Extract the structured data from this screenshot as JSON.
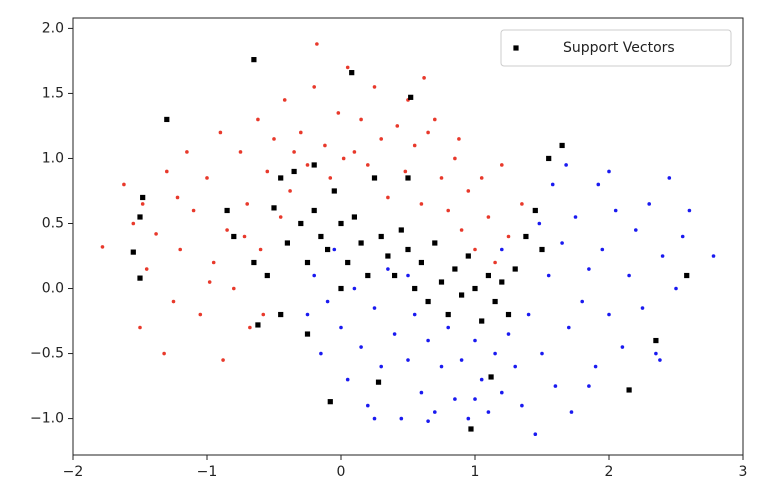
{
  "chart_data": {
    "type": "scatter",
    "xlim": [
      -2.0,
      3.0
    ],
    "ylim": [
      -1.28,
      2.08
    ],
    "xticks": [
      {
        "value": -2,
        "label": "−2"
      },
      {
        "value": -1,
        "label": "−1"
      },
      0,
      1,
      2,
      3
    ],
    "yticks": [
      {
        "value": 2.0,
        "label": "2.0"
      },
      {
        "value": 1.5,
        "label": "1.5"
      },
      {
        "value": 1.0,
        "label": "1.0"
      },
      {
        "value": 0.5,
        "label": "0.5"
      },
      {
        "value": 0.0,
        "label": "0.0"
      },
      {
        "value": -0.5,
        "label": "−0.5"
      },
      {
        "value": -1.0,
        "label": "−1.0"
      }
    ],
    "grid": false,
    "legend": "upper right",
    "series": [
      {
        "color": "#e8392b",
        "marker": "circle",
        "x": [
          -1.78,
          -1.62,
          -1.55,
          -1.5,
          -1.45,
          -1.38,
          -1.3,
          -1.25,
          -1.2,
          -1.15,
          -1.1,
          -1.05,
          -1.0,
          -0.95,
          -0.9,
          -0.88,
          -0.85,
          -0.8,
          -0.75,
          -0.7,
          -0.68,
          -0.62,
          -0.6,
          -0.55,
          -0.5,
          -0.45,
          -0.42,
          -0.38,
          -0.3,
          -0.25,
          -0.2,
          -0.18,
          -0.12,
          -0.08,
          -0.02,
          0.05,
          0.1,
          0.15,
          0.2,
          0.25,
          0.3,
          0.35,
          0.42,
          0.48,
          0.5,
          0.55,
          0.6,
          0.65,
          0.7,
          0.75,
          0.8,
          0.85,
          0.9,
          0.95,
          1.0,
          1.05,
          1.1,
          1.15,
          1.2,
          1.25,
          1.3,
          1.35,
          -1.48,
          -1.32,
          -0.98,
          -0.72,
          -1.22,
          -0.58,
          0.02,
          0.62,
          -0.35,
          0.88
        ],
        "values": [
          0.32,
          0.8,
          0.5,
          -0.3,
          0.15,
          0.42,
          0.9,
          -0.1,
          0.3,
          1.05,
          0.6,
          -0.2,
          0.85,
          0.2,
          1.2,
          -0.55,
          0.45,
          0.0,
          1.05,
          0.65,
          -0.3,
          1.3,
          0.3,
          0.9,
          1.15,
          0.55,
          1.45,
          0.75,
          1.2,
          0.95,
          1.55,
          1.88,
          1.1,
          0.85,
          1.35,
          1.7,
          1.05,
          1.3,
          0.95,
          1.55,
          1.15,
          0.7,
          1.25,
          0.9,
          1.45,
          1.1,
          0.65,
          1.2,
          1.3,
          0.85,
          0.6,
          1.0,
          0.45,
          0.75,
          0.3,
          0.85,
          0.55,
          0.2,
          0.95,
          0.4,
          0.15,
          0.65,
          0.65,
          -0.5,
          0.05,
          0.4,
          0.7,
          -0.2,
          1.0,
          1.62,
          1.05,
          1.15
        ]
      },
      {
        "color": "#1a1af0",
        "marker": "circle",
        "x": [
          -0.25,
          -0.2,
          -0.15,
          -0.1,
          -0.05,
          0.0,
          0.05,
          0.1,
          0.15,
          0.2,
          0.25,
          0.3,
          0.35,
          0.4,
          0.45,
          0.5,
          0.55,
          0.6,
          0.65,
          0.7,
          0.75,
          0.8,
          0.85,
          0.9,
          0.95,
          1.0,
          1.05,
          1.1,
          1.15,
          1.2,
          1.25,
          1.3,
          1.35,
          1.4,
          1.45,
          1.5,
          1.55,
          1.6,
          1.65,
          1.7,
          1.72,
          1.75,
          1.8,
          1.85,
          1.9,
          1.92,
          1.95,
          2.0,
          2.05,
          2.1,
          2.15,
          2.2,
          2.25,
          2.3,
          2.35,
          2.4,
          2.45,
          2.5,
          2.55,
          2.78,
          1.68,
          1.58,
          2.38,
          0.25,
          1.0,
          1.85,
          0.5,
          1.2,
          2.6,
          2.0,
          0.65,
          1.48
        ],
        "values": [
          -0.2,
          0.1,
          -0.5,
          -0.1,
          0.3,
          -0.3,
          -0.7,
          0.0,
          -0.45,
          -0.9,
          -0.15,
          -0.6,
          0.15,
          -0.35,
          -1.0,
          -0.55,
          -0.2,
          -0.8,
          -0.4,
          -0.95,
          -0.6,
          -0.3,
          -0.85,
          -0.55,
          -1.0,
          -0.4,
          -0.7,
          -0.95,
          -0.5,
          -0.8,
          -0.35,
          -0.6,
          -0.9,
          -0.2,
          -1.12,
          -0.5,
          0.1,
          -0.75,
          0.35,
          -0.3,
          -0.95,
          0.55,
          -0.1,
          0.15,
          -0.6,
          0.8,
          0.3,
          -0.2,
          0.6,
          -0.45,
          0.1,
          0.45,
          -0.15,
          0.65,
          -0.5,
          0.25,
          0.85,
          0.0,
          0.4,
          0.25,
          0.95,
          0.8,
          -0.55,
          -1.0,
          -0.85,
          -0.75,
          0.1,
          0.3,
          0.6,
          0.9,
          -1.02,
          0.5
        ]
      },
      {
        "name": "Support Vectors",
        "color": "#000000",
        "marker": "square",
        "x": [
          -1.3,
          -1.48,
          -1.5,
          -1.55,
          -1.5,
          -0.65,
          0.08,
          0.52,
          -0.85,
          -0.8,
          -0.65,
          -0.55,
          -0.62,
          -0.45,
          -0.5,
          -0.45,
          -0.4,
          -0.35,
          -0.3,
          -0.25,
          -0.2,
          -0.15,
          -0.1,
          -0.05,
          0.0,
          0.05,
          0.1,
          0.15,
          0.2,
          0.25,
          0.3,
          0.35,
          0.4,
          0.45,
          0.5,
          0.55,
          0.6,
          0.65,
          0.7,
          0.75,
          0.8,
          0.85,
          0.9,
          0.95,
          1.0,
          1.05,
          1.1,
          1.15,
          1.2,
          1.25,
          1.3,
          1.38,
          1.45,
          1.5,
          1.65,
          1.55,
          2.15,
          2.35,
          2.58,
          -0.08,
          0.97,
          1.12,
          0.28,
          -0.25,
          0.0,
          -0.2,
          0.5
        ],
        "values": [
          1.3,
          0.7,
          0.55,
          0.28,
          0.08,
          1.76,
          1.66,
          1.47,
          0.6,
          0.4,
          0.2,
          0.1,
          -0.28,
          -0.2,
          0.62,
          0.85,
          0.35,
          0.9,
          0.5,
          0.2,
          0.6,
          0.4,
          0.3,
          0.75,
          0.5,
          0.2,
          0.55,
          0.35,
          0.1,
          0.85,
          0.4,
          0.25,
          0.1,
          0.45,
          0.3,
          0.0,
          0.2,
          -0.1,
          0.35,
          0.05,
          -0.2,
          0.15,
          -0.05,
          0.25,
          0.0,
          -0.25,
          0.1,
          -0.1,
          0.05,
          -0.2,
          0.15,
          0.4,
          0.6,
          0.3,
          1.1,
          1.0,
          -0.78,
          -0.4,
          0.1,
          -0.87,
          -1.08,
          -0.68,
          -0.72,
          -0.35,
          0.0,
          0.95,
          0.85
        ]
      }
    ]
  }
}
